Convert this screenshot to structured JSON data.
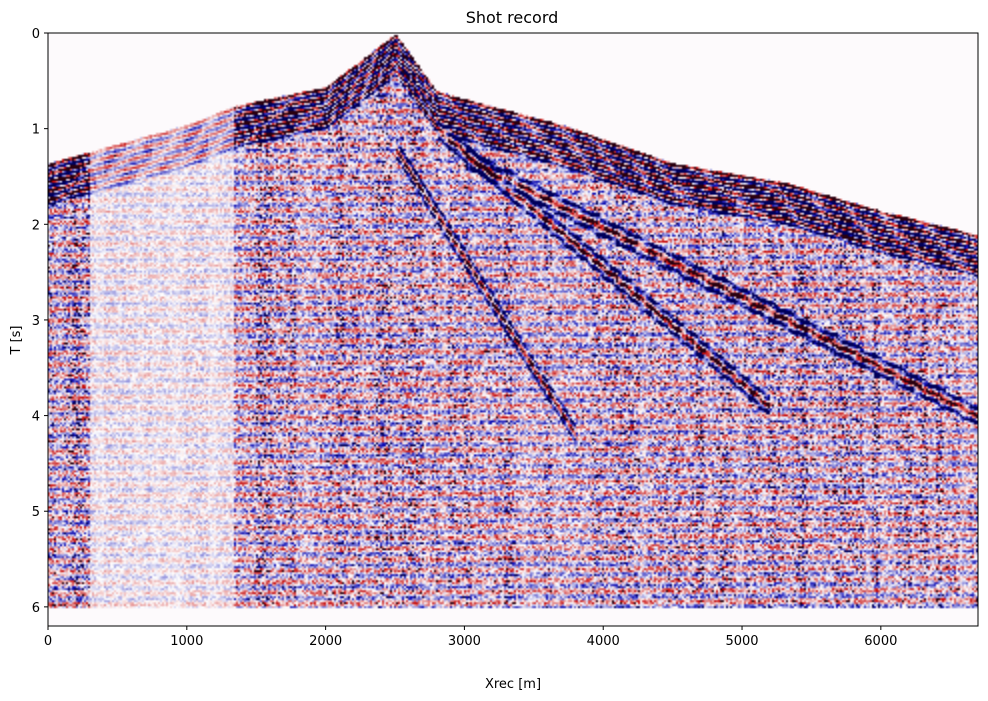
{
  "chart_data": {
    "type": "heatmap",
    "title": "Shot record",
    "xlabel": "Xrec [m]",
    "ylabel": "T [s]",
    "xlim": [
      0,
      6700
    ],
    "ylim": [
      6.2,
      0
    ],
    "y_inverted": true,
    "grid": false,
    "colormap": "seismic",
    "colors": {
      "positive": "#c40000",
      "negative": "#0000b0",
      "zero": "#ffffff",
      "strong": "#2a0010"
    },
    "x_ticks": [
      {
        "value": 0,
        "label": "0"
      },
      {
        "value": 1000,
        "label": "1000"
      },
      {
        "value": 2000,
        "label": "2000"
      },
      {
        "value": 3000,
        "label": "3000"
      },
      {
        "value": 4000,
        "label": "4000"
      },
      {
        "value": 5000,
        "label": "5000"
      },
      {
        "value": 6000,
        "label": "6000"
      }
    ],
    "y_ticks": [
      {
        "value": 0,
        "label": "0"
      },
      {
        "value": 1,
        "label": "1"
      },
      {
        "value": 2,
        "label": "2"
      },
      {
        "value": 3,
        "label": "3"
      },
      {
        "value": 4,
        "label": "4"
      },
      {
        "value": 5,
        "label": "5"
      },
      {
        "value": 6,
        "label": "6"
      }
    ],
    "record_end_time": 6.0,
    "source_x": 2500,
    "first_break": [
      {
        "x": 0,
        "t": 1.35
      },
      {
        "x": 500,
        "t": 1.15
      },
      {
        "x": 1000,
        "t": 0.95
      },
      {
        "x": 1350,
        "t": 0.75
      },
      {
        "x": 2000,
        "t": 0.55
      },
      {
        "x": 2500,
        "t": 0.0
      },
      {
        "x": 2800,
        "t": 0.6
      },
      {
        "x": 3700,
        "t": 0.95
      },
      {
        "x": 4500,
        "t": 1.35
      },
      {
        "x": 5300,
        "t": 1.55
      },
      {
        "x": 6000,
        "t": 1.85
      },
      {
        "x": 6700,
        "t": 2.1
      }
    ],
    "events": [
      {
        "x": [
          2500,
          3800
        ],
        "t": [
          1.2,
          4.2
        ]
      },
      {
        "x": [
          2800,
          5200
        ],
        "t": [
          1.0,
          3.9
        ]
      },
      {
        "x": [
          3000,
          6700
        ],
        "t": [
          1.3,
          4.0
        ]
      }
    ],
    "weak_trace_zones": [
      {
        "x": [
          300,
          1330
        ]
      }
    ]
  }
}
